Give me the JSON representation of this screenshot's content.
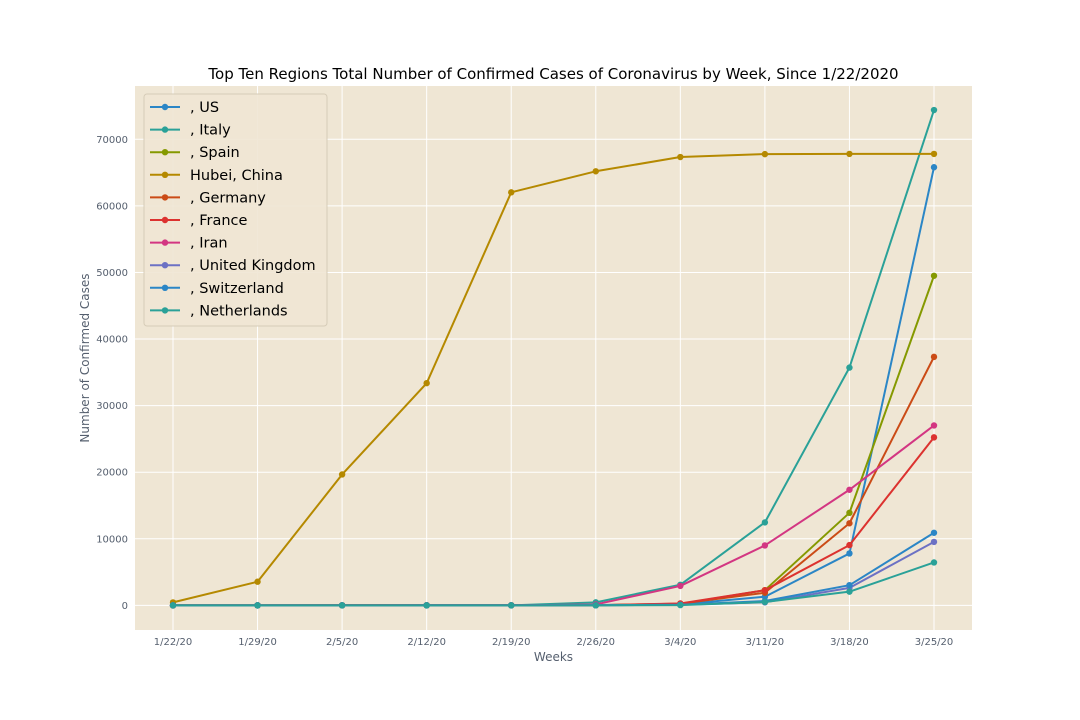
{
  "chart_data": {
    "type": "line",
    "title": "Top Ten Regions Total Number of Confirmed Cases of Coronavirus by Week, Since 1/22/2020",
    "xlabel": "Weeks",
    "ylabel": "Number of Confirmed Cases",
    "categories": [
      "1/22/20",
      "1/29/20",
      "2/5/20",
      "2/12/20",
      "2/19/20",
      "2/26/20",
      "3/4/20",
      "3/11/20",
      "3/18/20",
      "3/25/20"
    ],
    "ylim": [
      -3700,
      78000
    ],
    "yticks": [
      0,
      10000,
      20000,
      30000,
      40000,
      50000,
      60000,
      70000
    ],
    "grid": true,
    "legend_position": "top-left",
    "background_color": "#efe6d4",
    "grid_color": "#ffffff",
    "series": [
      {
        "name": ", US",
        "color": "#2b86c6",
        "values": [
          1,
          5,
          11,
          13,
          15,
          60,
          150,
          1300,
          7800,
          65800
        ]
      },
      {
        "name": ", Italy",
        "color": "#2aa198",
        "values": [
          0,
          0,
          2,
          3,
          3,
          455,
          3090,
          12460,
          35710,
          74390
        ]
      },
      {
        "name": ", Spain",
        "color": "#859900",
        "values": [
          0,
          0,
          1,
          2,
          2,
          15,
          200,
          2280,
          13900,
          49500
        ]
      },
      {
        "name": "Hubei, China",
        "color": "#b58900",
        "values": [
          444,
          3550,
          19660,
          33370,
          62030,
          65190,
          67330,
          67770,
          67800,
          67800
        ]
      },
      {
        "name": ", Germany",
        "color": "#cb4b16",
        "values": [
          0,
          4,
          12,
          16,
          16,
          21,
          260,
          1900,
          12330,
          37320
        ]
      },
      {
        "name": ", France",
        "color": "#dc322f",
        "values": [
          0,
          5,
          6,
          11,
          12,
          18,
          285,
          2280,
          9050,
          25230
        ]
      },
      {
        "name": ", Iran",
        "color": "#d33682",
        "values": [
          0,
          0,
          0,
          0,
          2,
          139,
          2920,
          9000,
          17360,
          27020
        ]
      },
      {
        "name": ", United Kingdom",
        "color": "#6c71c4",
        "values": [
          0,
          0,
          2,
          9,
          9,
          13,
          87,
          460,
          2630,
          9530
        ]
      },
      {
        "name": ", Switzerland",
        "color": "#2b86c6",
        "values": [
          0,
          0,
          0,
          0,
          0,
          8,
          90,
          650,
          3030,
          10900
        ]
      },
      {
        "name": ", Netherlands",
        "color": "#2aa198",
        "values": [
          0,
          0,
          0,
          0,
          0,
          2,
          38,
          500,
          2060,
          6440
        ]
      }
    ]
  }
}
